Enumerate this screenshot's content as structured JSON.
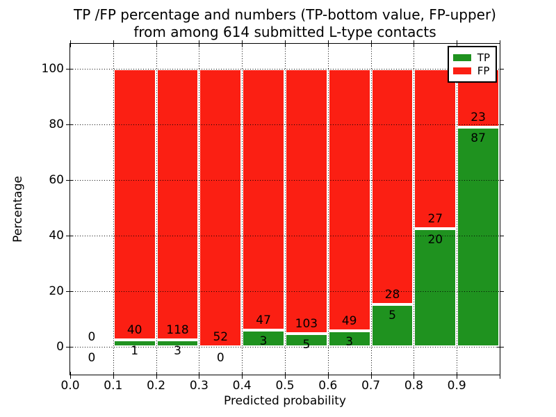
{
  "figure": {
    "title_line1": "TP /FP percentage and numbers (TP-bottom value, FP-upper)",
    "title_line2": "from among 614 submitted L-type contacts",
    "xlabel": "Predicted probability",
    "ylabel": "Percentage"
  },
  "legend": {
    "items": [
      {
        "label": "TP",
        "color": "#1f921f"
      },
      {
        "label": "FP",
        "color": "#fb1f13"
      }
    ]
  },
  "colors": {
    "tp_green": "#1f921f",
    "fp_red": "#fb1f13",
    "bar_edge": "#ffffff",
    "grid": "#000000",
    "background": "#ffffff",
    "text": "#000000"
  },
  "chart_data": {
    "type": "bar",
    "stacked": true,
    "normalization": "each bin scaled to 100 percent, TP bottom / FP top",
    "title": "TP /FP percentage and numbers (TP-bottom value, FP-upper) from among 614 submitted L-type contacts",
    "xlabel": "Predicted probability",
    "ylabel": "Percentage",
    "bin_edges": [
      0.0,
      0.1,
      0.2,
      0.3,
      0.4,
      0.5,
      0.6,
      0.7,
      0.8,
      0.9,
      1.0
    ],
    "x_tick_labels": [
      "0.0",
      "0.1",
      "0.2",
      "0.3",
      "0.4",
      "0.5",
      "0.6",
      "0.7",
      "0.8",
      "0.9"
    ],
    "y_ticks": [
      0,
      20,
      40,
      60,
      80,
      100
    ],
    "xlim": [
      0.0,
      1.0
    ],
    "ylim": [
      -10.25,
      109.25
    ],
    "grid": "dotted, drawn over bars",
    "legend_position": "upper right",
    "series": [
      {
        "name": "TP",
        "color": "#1f921f",
        "counts": [
          0,
          1,
          3,
          0,
          3,
          5,
          3,
          5,
          20,
          87
        ]
      },
      {
        "name": "FP",
        "color": "#fb1f13",
        "counts": [
          0,
          40,
          118,
          52,
          47,
          103,
          49,
          28,
          27,
          23
        ]
      }
    ],
    "tp_percent_by_bin": [
      0,
      2.44,
      2.48,
      0,
      6.0,
      4.63,
      5.77,
      15.15,
      42.55,
      79.09
    ],
    "bar_count_labels": {
      "fp_upper": [
        "0",
        "40",
        "118",
        "52",
        "47",
        "103",
        "49",
        "28",
        "27",
        "23"
      ],
      "tp_bottom": [
        "0",
        "1",
        "3",
        "0",
        "3",
        "5",
        "3",
        "5",
        "20",
        "87"
      ]
    }
  }
}
